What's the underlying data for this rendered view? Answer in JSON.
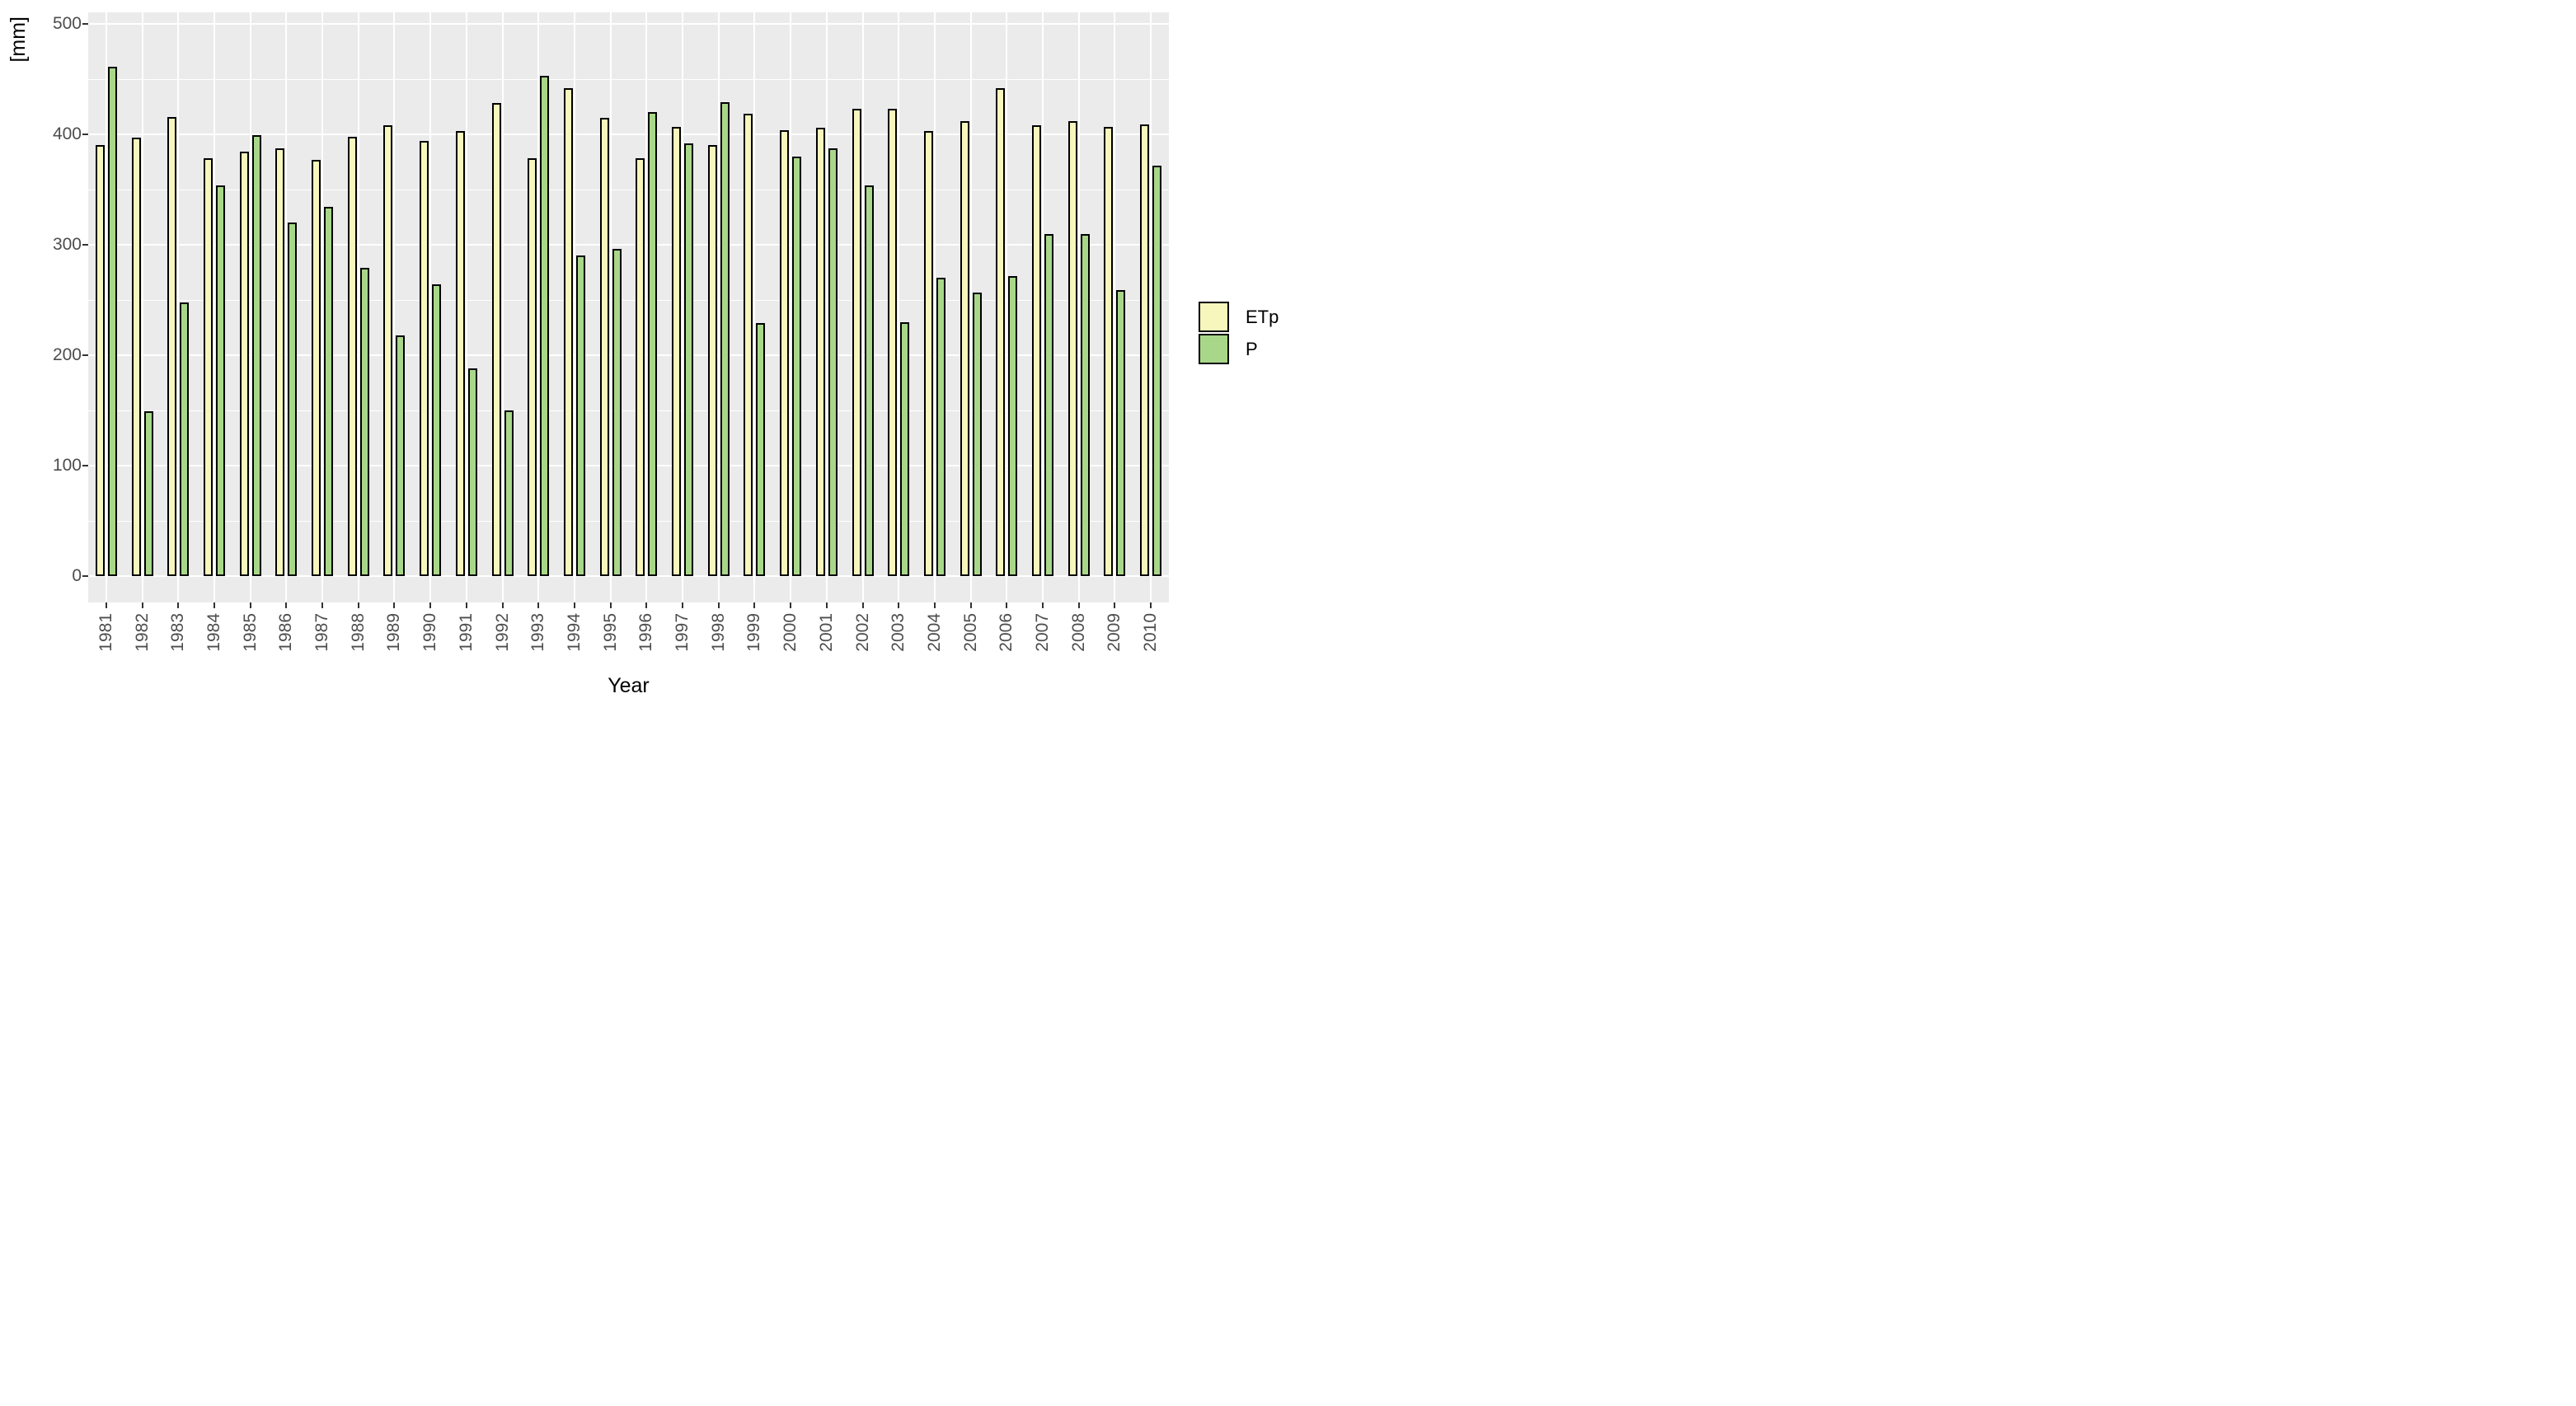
{
  "chart_data": {
    "type": "bar",
    "title": "",
    "xlabel": "Year",
    "ylabel": "[mm]",
    "categories": [
      "1981",
      "1982",
      "1983",
      "1984",
      "1985",
      "1986",
      "1987",
      "1988",
      "1989",
      "1990",
      "1991",
      "1992",
      "1993",
      "1994",
      "1995",
      "1996",
      "1997",
      "1998",
      "1999",
      "2000",
      "2001",
      "2002",
      "2003",
      "2004",
      "2005",
      "2006",
      "2007",
      "2008",
      "2009",
      "2010"
    ],
    "series": [
      {
        "name": "ETp",
        "color": "#F6F6BD",
        "values": [
          390,
          397,
          416,
          378,
          384,
          387,
          377,
          398,
          408,
          394,
          403,
          428,
          378,
          442,
          415,
          378,
          407,
          390,
          419,
          404,
          406,
          423,
          423,
          403,
          412,
          442,
          408,
          412,
          407,
          409
        ]
      },
      {
        "name": "P",
        "color": "#A8D78A",
        "values": [
          461,
          149,
          248,
          354,
          399,
          320,
          334,
          279,
          218,
          264,
          188,
          150,
          453,
          290,
          296,
          420,
          392,
          429,
          229,
          380,
          387,
          354,
          230,
          270,
          257,
          272,
          310,
          310,
          259,
          372
        ]
      }
    ],
    "ylim": [
      0,
      500
    ],
    "yticks": [
      0,
      100,
      200,
      300,
      400,
      500
    ],
    "y_minor_ticks": [
      50,
      150,
      250,
      350,
      450
    ],
    "grid": "white major and minor gridlines on gray panel",
    "legend_position": "right"
  },
  "style": {
    "panel_bg": "#EBEBEB",
    "grid_color": "#FFFFFF",
    "bar_stroke": "#000000",
    "axis_tick_color": "#333333",
    "axis_text_color": "#4D4D4D",
    "title_color": "#000000"
  }
}
